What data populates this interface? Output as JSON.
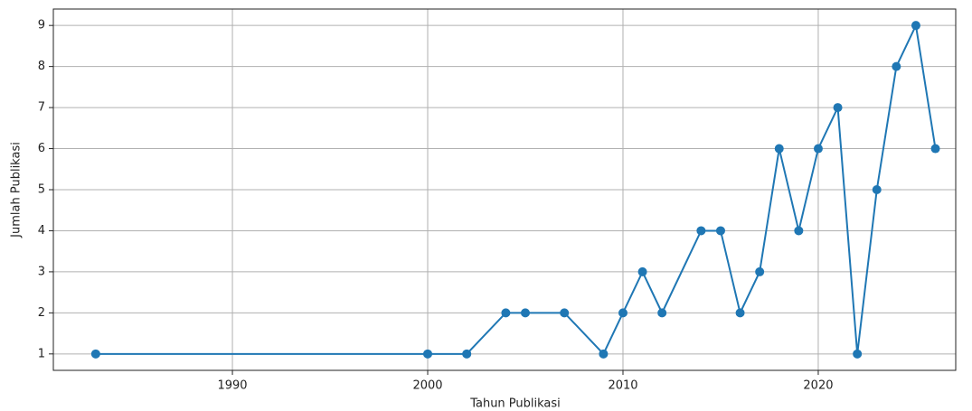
{
  "chart_data": {
    "type": "line",
    "x_label": "Tahun Publikasi",
    "y_label": "Jumlah Publikasi",
    "series": [
      {
        "color": "#1f77b4",
        "x": [
          1983,
          2000,
          2002,
          2004,
          2005,
          2007,
          2009,
          2010,
          2011,
          2012,
          2014,
          2015,
          2016,
          2017,
          2018,
          2019,
          2020,
          2021,
          2022,
          2023,
          2024,
          2025,
          2026
        ],
        "values": [
          1,
          1,
          1,
          2,
          2,
          2,
          1,
          2,
          3,
          2,
          4,
          4,
          2,
          3,
          6,
          4,
          6,
          7,
          1,
          5,
          8,
          9,
          6
        ]
      }
    ],
    "xlim": [
      1980.83,
      2027.04
    ],
    "xticks": [
      1990,
      2000,
      2010,
      2020
    ],
    "ylim": [
      0.6,
      9.4
    ],
    "yticks": [
      1,
      2,
      3,
      4,
      5,
      6,
      7,
      8,
      9
    ],
    "grid": true,
    "marker": "circle"
  }
}
